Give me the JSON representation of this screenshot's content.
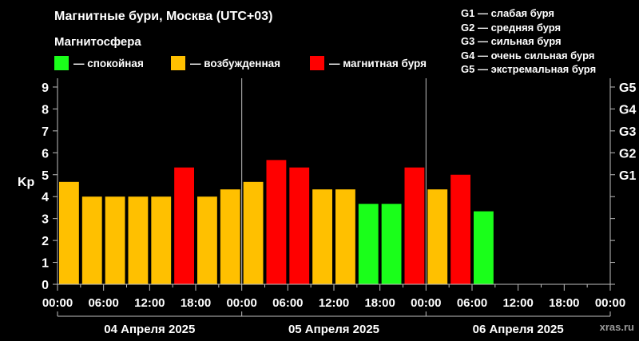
{
  "header": {
    "title": "Магнитные бури, Москва (UTC+03)",
    "subtitle": "Магнитосфера"
  },
  "legend": [
    {
      "color": "#1aff1a",
      "label": "— спокойная"
    },
    {
      "color": "#ffc000",
      "label": "— возбужденная"
    },
    {
      "color": "#ff0000",
      "label": "— магнитная буря"
    }
  ],
  "g_legend": [
    {
      "code": "G1",
      "label": " — слабая буря"
    },
    {
      "code": "G2",
      "label": " — средняя буря"
    },
    {
      "code": "G3",
      "label": " — сильная буря"
    },
    {
      "code": "G4",
      "label": " — очень сильная буря"
    },
    {
      "code": "G5",
      "label": " — экстремальная буря"
    }
  ],
  "watermark": "xras.ru",
  "chart_data": {
    "type": "bar",
    "ylabel": "Kp",
    "ylim": [
      0,
      9.4
    ],
    "yticks": [
      "0",
      "1",
      "2",
      "3",
      "4",
      "5",
      "6",
      "7",
      "8",
      "9"
    ],
    "g_ticks": [
      {
        "label": "G1",
        "kp": 5
      },
      {
        "label": "G2",
        "kp": 6
      },
      {
        "label": "G3",
        "kp": 7
      },
      {
        "label": "G4",
        "kp": 8
      },
      {
        "label": "G5",
        "kp": 9
      }
    ],
    "xticks": [
      "00:00",
      "06:00",
      "12:00",
      "18:00",
      "00:00",
      "06:00",
      "12:00",
      "18:00",
      "00:00",
      "06:00",
      "12:00",
      "18:00",
      "00:00"
    ],
    "days": [
      "04 Апреля 2025",
      "05 Апреля 2025",
      "06 Апреля 2025"
    ],
    "interval_hours": 3,
    "values": [
      4.67,
      4.0,
      4.0,
      4.0,
      4.0,
      5.33,
      4.0,
      4.33,
      4.67,
      5.67,
      5.33,
      4.33,
      4.33,
      3.67,
      3.67,
      5.33,
      4.33,
      5.0,
      3.33
    ],
    "colors": {
      "quiet": "#1aff1a",
      "active": "#ffc000",
      "storm": "#ff0000"
    }
  }
}
